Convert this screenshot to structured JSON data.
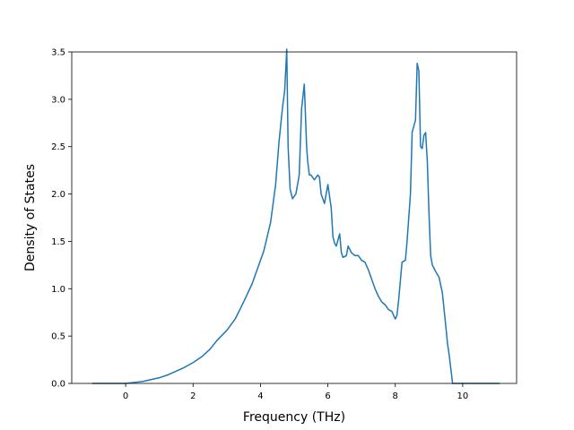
{
  "chart_data": {
    "type": "line",
    "title": "",
    "xlabel": "Frequency (THz)",
    "ylabel": "Density of States",
    "xlim": [
      -1.6,
      11.6
    ],
    "ylim": [
      0.0,
      3.5
    ],
    "grid": false,
    "legend": "none",
    "line_color": "#1f77b4",
    "xticks": [
      {
        "value": 0,
        "label": "0"
      },
      {
        "value": 2,
        "label": "2"
      },
      {
        "value": 4,
        "label": "4"
      },
      {
        "value": 6,
        "label": "6"
      },
      {
        "value": 8,
        "label": "8"
      },
      {
        "value": 10,
        "label": "10"
      }
    ],
    "yticks": [
      {
        "value": 0.0,
        "label": "0.0"
      },
      {
        "value": 0.5,
        "label": "0.5"
      },
      {
        "value": 1.0,
        "label": "1.0"
      },
      {
        "value": 1.5,
        "label": "1.5"
      },
      {
        "value": 2.0,
        "label": "2.0"
      },
      {
        "value": 2.5,
        "label": "2.5"
      },
      {
        "value": 3.0,
        "label": "3.0"
      },
      {
        "value": 3.5,
        "label": "3.5"
      }
    ],
    "series": [
      {
        "x": [
          -1.0,
          -0.5,
          0.0,
          0.25,
          0.5,
          0.75,
          1.0,
          1.25,
          1.5,
          1.75,
          2.0,
          2.25,
          2.5,
          2.7,
          3.0,
          3.25,
          3.5,
          3.75,
          3.95,
          4.1,
          4.3,
          4.45,
          4.55,
          4.65,
          4.72,
          4.78,
          4.82,
          4.88,
          4.95,
          5.05,
          5.15,
          5.22,
          5.3,
          5.37,
          5.4,
          5.45,
          5.5,
          5.6,
          5.7,
          5.75,
          5.8,
          5.9,
          6.0,
          6.1,
          6.15,
          6.2,
          6.25,
          6.35,
          6.4,
          6.45,
          6.55,
          6.6,
          6.7,
          6.8,
          6.9,
          7.0,
          7.1,
          7.2,
          7.3,
          7.4,
          7.5,
          7.6,
          7.7,
          7.8,
          7.9,
          7.95,
          8.0,
          8.05,
          8.1,
          8.2,
          8.3,
          8.35,
          8.4,
          8.45,
          8.5,
          8.6,
          8.65,
          8.7,
          8.75,
          8.8,
          8.85,
          8.9,
          8.95,
          9.0,
          9.05,
          9.1,
          9.2,
          9.3,
          9.4,
          9.5,
          9.55,
          9.6,
          9.7,
          9.8,
          9.9,
          10.0,
          10.05,
          10.5,
          11.0,
          11.1
        ],
        "y": [
          0.0,
          0.0,
          0.0,
          0.01,
          0.02,
          0.04,
          0.06,
          0.09,
          0.13,
          0.17,
          0.22,
          0.28,
          0.36,
          0.45,
          0.56,
          0.68,
          0.86,
          1.05,
          1.25,
          1.4,
          1.7,
          2.1,
          2.55,
          2.9,
          3.1,
          3.53,
          2.5,
          2.05,
          1.95,
          2.0,
          2.2,
          2.9,
          3.16,
          2.5,
          2.35,
          2.2,
          2.2,
          2.15,
          2.2,
          2.18,
          2.0,
          1.9,
          2.1,
          1.85,
          1.55,
          1.48,
          1.45,
          1.58,
          1.38,
          1.33,
          1.35,
          1.45,
          1.38,
          1.35,
          1.35,
          1.3,
          1.28,
          1.2,
          1.1,
          1.0,
          0.92,
          0.86,
          0.83,
          0.78,
          0.76,
          0.72,
          0.68,
          0.72,
          0.88,
          1.28,
          1.3,
          1.5,
          1.75,
          2.0,
          2.65,
          2.78,
          3.38,
          3.3,
          2.5,
          2.48,
          2.62,
          2.65,
          2.35,
          1.8,
          1.35,
          1.25,
          1.18,
          1.12,
          0.95,
          0.6,
          0.42,
          0.3,
          0.0,
          0.0,
          0.0,
          0.0,
          0.0,
          0.0,
          0.0,
          0.0
        ]
      }
    ]
  }
}
